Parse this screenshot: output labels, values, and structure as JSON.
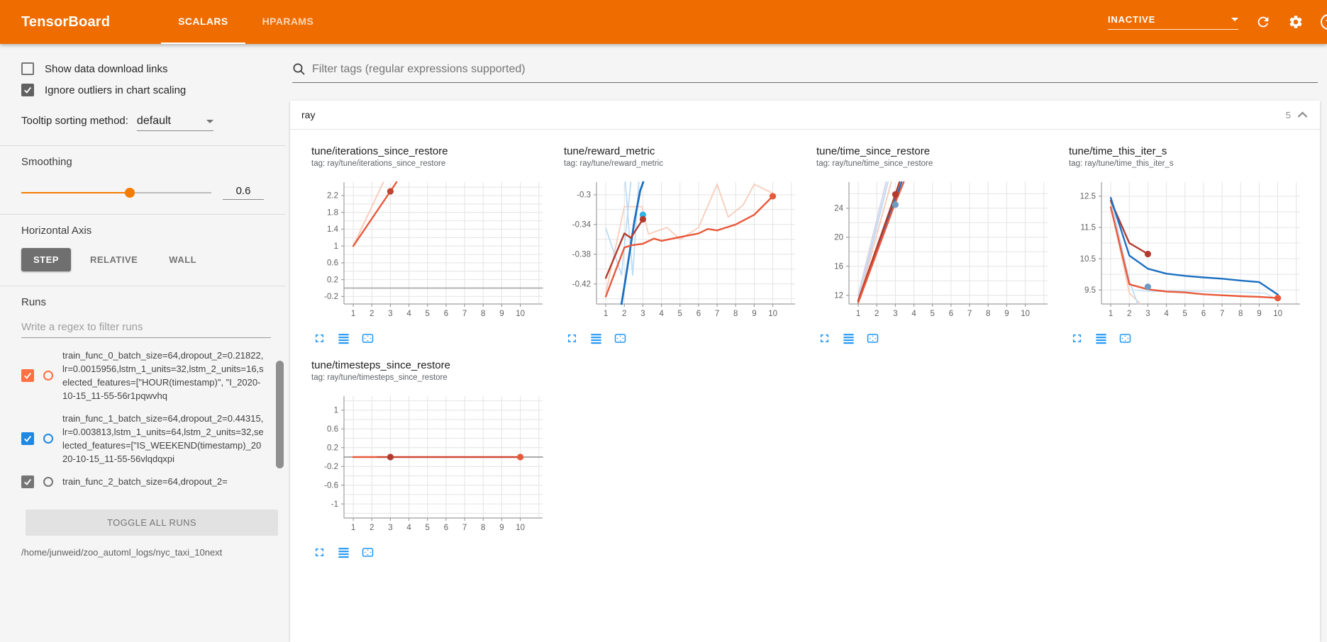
{
  "header": {
    "title": "TensorBoard",
    "tabs": [
      {
        "label": "SCALARS",
        "active": true
      },
      {
        "label": "HPARAMS",
        "active": false
      }
    ],
    "status_value": "INACTIVE",
    "icons": [
      "refresh-icon",
      "settings-gear-icon",
      "help-icon"
    ],
    "help_glyph": "?"
  },
  "sidebar": {
    "checkboxes": [
      {
        "label": "Show data download links",
        "checked": false
      },
      {
        "label": "Ignore outliers in chart scaling",
        "checked": true
      }
    ],
    "tooltip_sorting": {
      "label": "Tooltip sorting method:",
      "value": "default"
    },
    "smoothing": {
      "label": "Smoothing",
      "value": "0.6",
      "percent": 57
    },
    "horizontal_axis": {
      "label": "Horizontal Axis",
      "options": [
        {
          "label": "STEP",
          "active": true
        },
        {
          "label": "RELATIVE",
          "active": false
        },
        {
          "label": "WALL",
          "active": false
        }
      ]
    },
    "runs": {
      "label": "Runs",
      "filter_placeholder": "Write a regex to filter runs",
      "items": [
        {
          "name": "train_func_0_batch_size=64,dropout_2=0.21822,lr=0.0015956,lstm_1_units=32,lstm_2_units=16,selected_features=[\"HOUR(timestamp)\", \"I_2020-10-15_11-55-56r1pqwvhq",
          "checked": true,
          "color": "#ff7043"
        },
        {
          "name": "train_func_1_batch_size=64,dropout_2=0.44315,lr=0.003813,lstm_1_units=64,lstm_2_units=32,selected_features=[\"IS_WEEKEND(timestamp)_2020-10-15_11-55-56vlqdqxpi",
          "checked": true,
          "color": "#1e88e5"
        },
        {
          "name": "train_func_2_batch_size=64,dropout_2=",
          "checked": true,
          "color": "#757575"
        }
      ],
      "toggle_all_label": "TOGGLE ALL RUNS",
      "log_path": "/home/junweid/zoo_automl_logs/nyc_taxi_10next"
    }
  },
  "main": {
    "filter_placeholder": "Filter tags (regular expressions supported)",
    "section": {
      "name": "ray",
      "count": "5"
    },
    "chart_card_icons": [
      "fullscreen-icon",
      "log-scale-icon",
      "fit-domain-icon"
    ]
  },
  "chart_data": [
    {
      "type": "line",
      "title": "tune/iterations_since_restore",
      "tag": "tag: ray/tune/iterations_since_restore",
      "xlim": [
        0.5,
        11.2
      ],
      "ylim": [
        -0.38,
        2.52
      ],
      "ygrid": 0.2,
      "xticks": [
        1,
        2,
        3,
        4,
        5,
        6,
        7,
        8,
        9,
        10
      ],
      "yticks": [
        2.2,
        1.8,
        1.4,
        1,
        0.6,
        0.2,
        -0.2
      ],
      "ylabels": [
        "2.2",
        "1.8",
        "1.4",
        "1",
        "0.6",
        "0.2",
        "-0.2"
      ],
      "series": [
        {
          "name": "zero-line",
          "color": "#9e9e9e",
          "width": 1.4,
          "points": [
            [
              0.5,
              0
            ],
            [
              11.2,
              0
            ]
          ]
        },
        {
          "name": "train_func_0-raw",
          "color": "#f8cdbc",
          "width": 2,
          "points": [
            [
              1,
              1
            ],
            [
              2.62,
              2.52
            ]
          ]
        },
        {
          "name": "train_func_0-smoothed",
          "color": "#e8593a",
          "width": 2.4,
          "points": [
            [
              1,
              1
            ],
            [
              3,
              2.3
            ],
            [
              3.33,
              2.52
            ]
          ]
        }
      ],
      "dots": [
        {
          "x": 3,
          "y": 2.3,
          "color": "#bf4330"
        }
      ]
    },
    {
      "type": "line",
      "title": "tune/reward_metric",
      "tag": "tag: ray/tune/reward_metric",
      "xlim": [
        0.5,
        11.2
      ],
      "ylim": [
        -0.447,
        -0.283
      ],
      "ygrid": 0.02,
      "xticks": [
        1,
        2,
        3,
        4,
        5,
        6,
        7,
        8,
        9,
        10
      ],
      "yticks": [
        -0.3,
        -0.34,
        -0.38,
        -0.42
      ],
      "ylabels": [
        "-0.3",
        "-0.34",
        "-0.38",
        "-0.42"
      ],
      "series": [
        {
          "name": "raw-orange",
          "color": "#f8cdbc",
          "width": 1.8,
          "points": [
            [
              1,
              -0.432
            ],
            [
              2,
              -0.316
            ],
            [
              2.95,
              -0.316
            ],
            [
              3.3,
              -0.353
            ],
            [
              4.3,
              -0.344
            ],
            [
              5,
              -0.36
            ],
            [
              6,
              -0.344
            ],
            [
              7,
              -0.286
            ],
            [
              7.6,
              -0.33
            ],
            [
              8.4,
              -0.314
            ],
            [
              9,
              -0.286
            ],
            [
              10,
              -0.298
            ]
          ]
        },
        {
          "name": "raw-blue-a",
          "color": "#bcdcf5",
          "width": 1.8,
          "points": [
            [
              1,
              -0.345
            ],
            [
              1.85,
              -0.408
            ],
            [
              2.35,
              -0.283
            ]
          ]
        },
        {
          "name": "raw-blue-b",
          "color": "#bcdcf5",
          "width": 1.8,
          "points": [
            [
              2.05,
              -0.283
            ],
            [
              2.45,
              -0.408
            ],
            [
              2.78,
              -0.283
            ]
          ]
        },
        {
          "name": "blue-smoothed",
          "color": "#1b6fc2",
          "width": 2.8,
          "points": [
            [
              1.85,
              -0.447
            ],
            [
              2.1,
              -0.408
            ],
            [
              2.55,
              -0.335
            ],
            [
              2.85,
              -0.295
            ],
            [
              3.02,
              -0.283
            ]
          ]
        },
        {
          "name": "darkred-smoothed",
          "color": "#b23b2e",
          "width": 2.4,
          "points": [
            [
              1,
              -0.412
            ],
            [
              2,
              -0.352
            ],
            [
              2.35,
              -0.358
            ],
            [
              3,
              -0.333
            ]
          ]
        },
        {
          "name": "orange-smoothed",
          "color": "#e8593a",
          "width": 2.4,
          "points": [
            [
              1,
              -0.437
            ],
            [
              2,
              -0.371
            ],
            [
              2.4,
              -0.368
            ],
            [
              3,
              -0.366
            ],
            [
              3.6,
              -0.359
            ],
            [
              4,
              -0.362
            ],
            [
              5,
              -0.357
            ],
            [
              6,
              -0.352
            ],
            [
              6.5,
              -0.346
            ],
            [
              7,
              -0.348
            ],
            [
              8,
              -0.34
            ],
            [
              9,
              -0.327
            ],
            [
              10,
              -0.302
            ]
          ]
        }
      ],
      "dots": [
        {
          "x": 3,
          "y": -0.327,
          "color": "#34b3e4"
        },
        {
          "x": 3,
          "y": -0.333,
          "color": "#b23b2e"
        },
        {
          "x": 10,
          "y": -0.302,
          "color": "#e8593a"
        }
      ]
    },
    {
      "type": "line",
      "title": "tune/time_since_restore",
      "tag": "tag: ray/tune/time_since_restore",
      "xlim": [
        0.5,
        11.2
      ],
      "ylim": [
        10.8,
        27.6
      ],
      "ygrid": 2,
      "xticks": [
        1,
        2,
        3,
        4,
        5,
        6,
        7,
        8,
        9,
        10
      ],
      "yticks": [
        24,
        20,
        16,
        12
      ],
      "ylabels": [
        "24",
        "20",
        "16",
        "12"
      ],
      "series": [
        {
          "name": "raw-lavender",
          "color": "#d9d4e8",
          "width": 2,
          "points": [
            [
              1,
              12
            ],
            [
              2.5,
              27.6
            ]
          ]
        },
        {
          "name": "raw-blue",
          "color": "#bcdcf5",
          "width": 2,
          "points": [
            [
              1,
              11.3
            ],
            [
              2.6,
              27.6
            ]
          ]
        },
        {
          "name": "raw-orange",
          "color": "#f8cdbc",
          "width": 2,
          "points": [
            [
              1,
              11.1
            ],
            [
              2.78,
              27.6
            ]
          ]
        },
        {
          "name": "blue-smoothed",
          "color": "#1b6fc2",
          "width": 2.4,
          "points": [
            [
              1,
              11.2
            ],
            [
              3,
              25.2
            ],
            [
              3.33,
              27.6
            ]
          ]
        },
        {
          "name": "darkred-smoothed",
          "color": "#b23b2e",
          "width": 2.4,
          "points": [
            [
              1,
              11.3
            ],
            [
              3,
              25.9
            ],
            [
              3.22,
              27.6
            ]
          ]
        },
        {
          "name": "orange-smoothed",
          "color": "#e8593a",
          "width": 2.4,
          "points": [
            [
              1,
              11.0
            ],
            [
              3,
              24.8
            ],
            [
              3.45,
              27.6
            ]
          ]
        }
      ],
      "dots": [
        {
          "x": 3,
          "y": 25.9,
          "color": "#b23b2e"
        },
        {
          "x": 3,
          "y": 24.5,
          "color": "#6d9bc3"
        }
      ]
    },
    {
      "type": "line",
      "title": "tune/time_this_iter_s",
      "tag": "tag: ray/tune/time_this_iter_s",
      "xlim": [
        0.5,
        11.2
      ],
      "ylim": [
        9.05,
        12.95
      ],
      "ygrid": 0.5,
      "xticks": [
        1,
        2,
        3,
        4,
        5,
        6,
        7,
        8,
        9,
        10
      ],
      "yticks": [
        12.5,
        11.5,
        10.5,
        9.5
      ],
      "ylabels": [
        "12.5",
        "11.5",
        "10.5",
        "9.5"
      ],
      "series": [
        {
          "name": "raw-orange",
          "color": "#f8cdbc",
          "width": 1.8,
          "points": [
            [
              1,
              12.2
            ],
            [
              2,
              9.4
            ],
            [
              2.6,
              9.05
            ]
          ]
        },
        {
          "name": "raw-blue",
          "color": "#bcdcf5",
          "width": 1.8,
          "points": [
            [
              1,
              12.4
            ],
            [
              2,
              9.8
            ],
            [
              2.45,
              9.05
            ]
          ]
        },
        {
          "name": "raw-blue-flat",
          "color": "#cfe6f7",
          "width": 1.8,
          "points": [
            [
              2.2,
              9.5
            ],
            [
              3.2,
              9.45
            ],
            [
              4.5,
              9.47
            ],
            [
              6,
              9.45
            ],
            [
              8,
              9.43
            ],
            [
              9.3,
              9.4
            ],
            [
              10,
              9.18
            ]
          ]
        },
        {
          "name": "darkred-smoothed",
          "color": "#b23b2e",
          "width": 2.4,
          "points": [
            [
              1,
              12.35
            ],
            [
              2,
              11.0
            ],
            [
              3,
              10.65
            ]
          ]
        },
        {
          "name": "blue-smoothed",
          "color": "#1b6fc2",
          "width": 2.4,
          "points": [
            [
              1,
              12.45
            ],
            [
              2,
              10.6
            ],
            [
              3,
              10.18
            ],
            [
              4,
              10.02
            ],
            [
              5,
              9.95
            ],
            [
              6,
              9.9
            ],
            [
              7,
              9.86
            ],
            [
              8,
              9.8
            ],
            [
              9,
              9.75
            ],
            [
              10,
              9.35
            ]
          ]
        },
        {
          "name": "orange-smoothed",
          "color": "#e8593a",
          "width": 2.4,
          "points": [
            [
              1,
              12.15
            ],
            [
              2,
              9.68
            ],
            [
              3,
              9.52
            ],
            [
              4,
              9.45
            ],
            [
              5,
              9.42
            ],
            [
              6,
              9.36
            ],
            [
              7,
              9.33
            ],
            [
              8,
              9.3
            ],
            [
              9,
              9.28
            ],
            [
              10,
              9.24
            ]
          ]
        }
      ],
      "dots": [
        {
          "x": 3,
          "y": 10.65,
          "color": "#b23b2e"
        },
        {
          "x": 3,
          "y": 9.6,
          "color": "#6d9bc3"
        },
        {
          "x": 10,
          "y": 9.24,
          "color": "#e8593a"
        }
      ]
    },
    {
      "type": "line",
      "title": "tune/timesteps_since_restore",
      "tag": "tag: ray/tune/timesteps_since_restore",
      "xlim": [
        0.5,
        11.2
      ],
      "ylim": [
        -1.3,
        1.3
      ],
      "ygrid": 0.2,
      "xticks": [
        1,
        2,
        3,
        4,
        5,
        6,
        7,
        8,
        9,
        10
      ],
      "yticks": [
        1,
        0.6,
        0.2,
        -0.2,
        -0.6,
        -1
      ],
      "ylabels": [
        "1",
        "0.6",
        "0.2",
        "-0.2",
        "-0.6",
        "-1"
      ],
      "series": [
        {
          "name": "zero-line",
          "color": "#8f8f8f",
          "width": 1.6,
          "points": [
            [
              0.5,
              0
            ],
            [
              11.2,
              0
            ]
          ]
        },
        {
          "name": "orange-smoothed",
          "color": "#e8593a",
          "width": 2.6,
          "points": [
            [
              1,
              0
            ],
            [
              10,
              0
            ]
          ]
        },
        {
          "name": "darkred-overlay",
          "color": "#b23b2e",
          "width": 2,
          "opacity": 0.55,
          "points": [
            [
              2.3,
              0
            ],
            [
              10,
              0
            ]
          ]
        }
      ],
      "dots": [
        {
          "x": 3,
          "y": 0,
          "color": "#b23b2e"
        },
        {
          "x": 10,
          "y": 0,
          "color": "#e8593a"
        }
      ]
    }
  ]
}
